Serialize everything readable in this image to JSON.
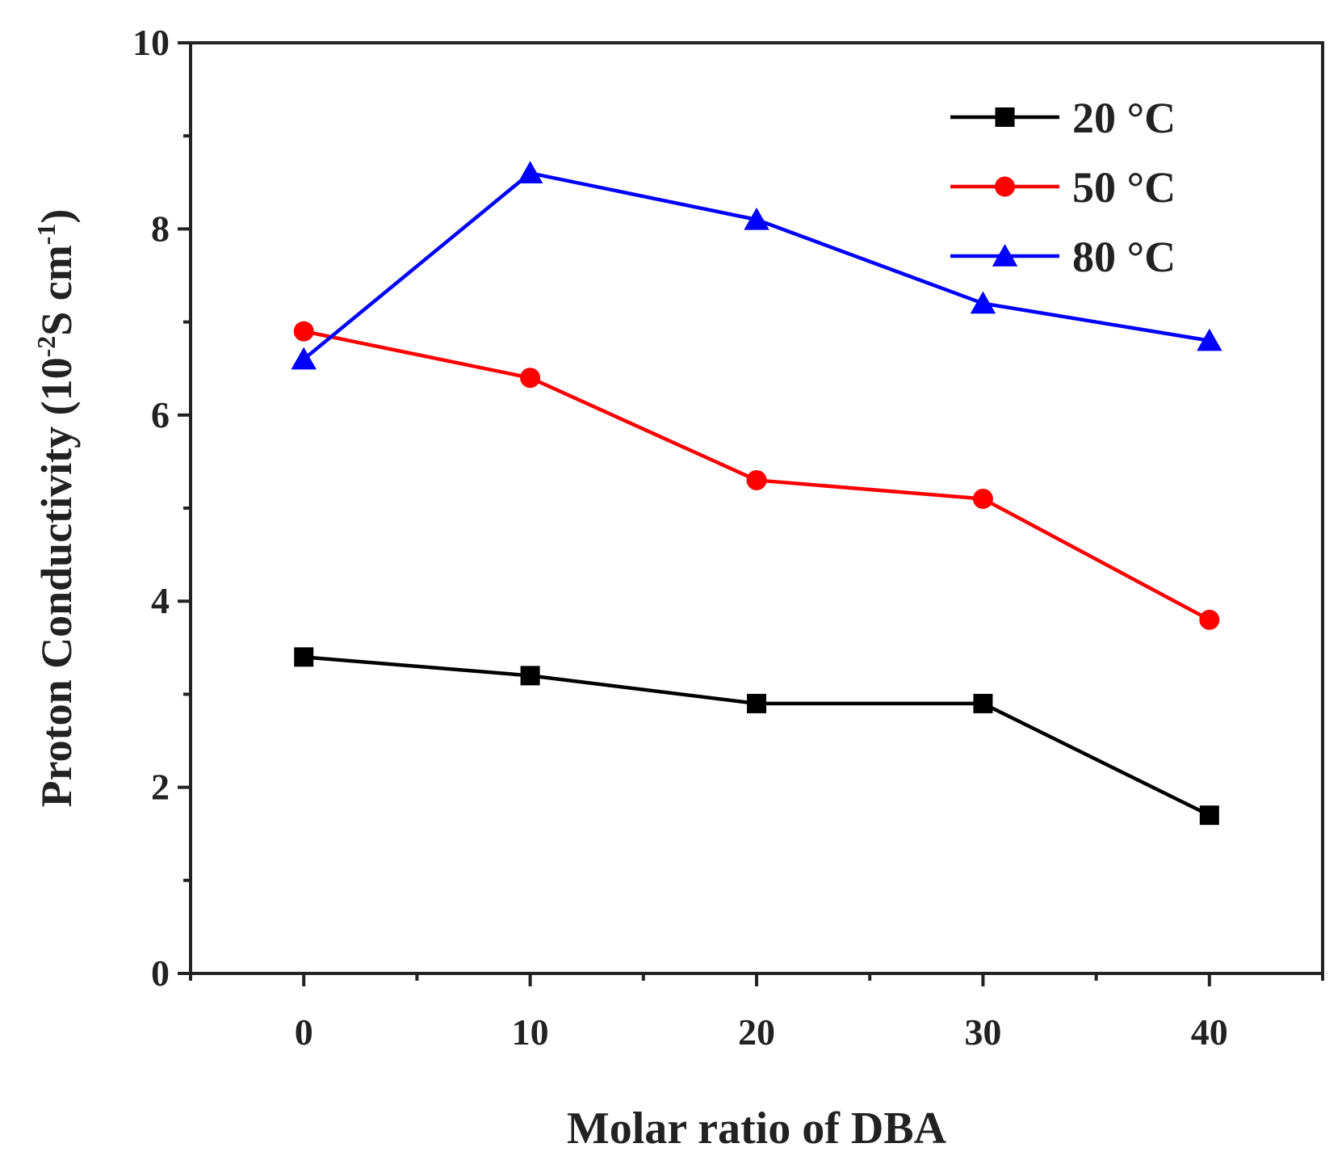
{
  "chart_data": {
    "type": "line",
    "title": "",
    "xlabel": "Molar ratio of DBA",
    "ylabel": {
      "main": "Proton Conductivity (10",
      "exp": "-2",
      "mid": "S cm",
      "exp2": "-1",
      "end": ")"
    },
    "xlim": [
      -5,
      45
    ],
    "ylim": [
      0,
      10
    ],
    "x": [
      0,
      10,
      20,
      30,
      40
    ],
    "xticks": [
      "0",
      "10",
      "20",
      "30",
      "40"
    ],
    "yticks": [
      "0",
      "2",
      "4",
      "6",
      "8",
      "10"
    ],
    "grid": false,
    "legend_position": "top-right",
    "series": [
      {
        "name": "20 °C",
        "color": "#000000",
        "marker": "square",
        "values": [
          3.4,
          3.2,
          2.9,
          2.9,
          1.7
        ]
      },
      {
        "name": "50 °C",
        "color": "#ff0000",
        "marker": "circle",
        "values": [
          6.9,
          6.4,
          5.3,
          5.1,
          3.8
        ]
      },
      {
        "name": "80 °C",
        "color": "#0000ff",
        "marker": "triangle",
        "values": [
          6.6,
          8.6,
          8.1,
          7.2,
          6.8
        ]
      }
    ]
  }
}
